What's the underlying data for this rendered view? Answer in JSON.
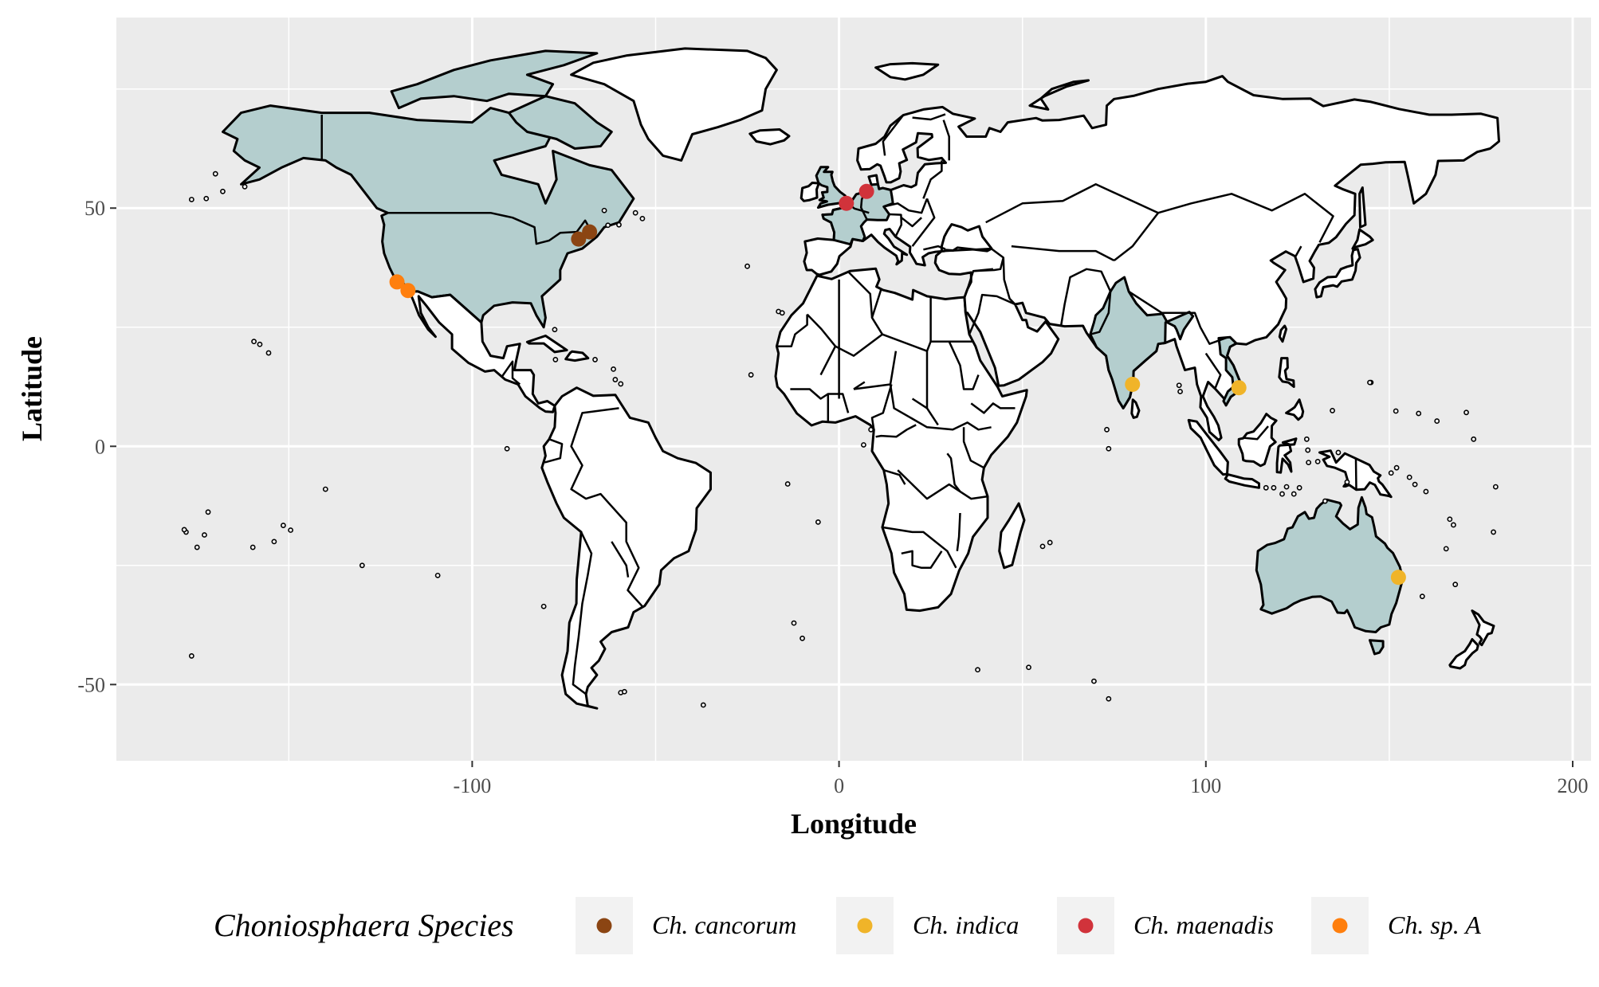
{
  "chart_data": {
    "type": "scatter",
    "base_layer": "world map",
    "xlabel": "Longitude",
    "ylabel": "Latitude",
    "xlim": [
      -197,
      205
    ],
    "ylim": [
      -66,
      90
    ],
    "x_ticks": [
      -100,
      0,
      100,
      200
    ],
    "y_ticks": [
      -50,
      0,
      50
    ],
    "x_tick_labels": [
      "-100",
      "0",
      "100",
      "200"
    ],
    "y_tick_labels": [
      "-50",
      "0",
      "50"
    ],
    "grid": true,
    "panel_background": "#ebebeb",
    "land_color": "#ffffff",
    "highlight_land_color": "#b4cece",
    "highlighted_regions": [
      "United States",
      "Canada",
      "United Kingdom",
      "France",
      "Germany",
      "Belgium",
      "Netherlands",
      "India",
      "Vietnam",
      "Australia"
    ],
    "legend": {
      "title": "Choniosphaera Species",
      "position": "bottom",
      "entries": [
        {
          "label": "Ch. cancorum",
          "color": "#8b4513"
        },
        {
          "label": "Ch. indica",
          "color": "#f0b429"
        },
        {
          "label": "Ch. maenadis",
          "color": "#d1333b"
        },
        {
          "label": "Ch. sp. A",
          "color": "#ff7f0e"
        }
      ]
    },
    "series": [
      {
        "name": "Ch. cancorum",
        "color": "#8b4513",
        "points": [
          [
            -71,
            43.5
          ],
          [
            -68,
            45
          ]
        ]
      },
      {
        "name": "Ch. indica",
        "color": "#f0b429",
        "points": [
          [
            80,
            13
          ],
          [
            109,
            12.3
          ],
          [
            152.5,
            -27.5
          ]
        ]
      },
      {
        "name": "Ch. maenadis",
        "color": "#d1333b",
        "points": [
          [
            2,
            51
          ],
          [
            7.5,
            53.5
          ]
        ]
      },
      {
        "name": "Ch. sp. A",
        "color": "#ff7f0e",
        "points": [
          [
            -120.5,
            34.5
          ],
          [
            -117.5,
            32.7
          ]
        ]
      }
    ]
  }
}
